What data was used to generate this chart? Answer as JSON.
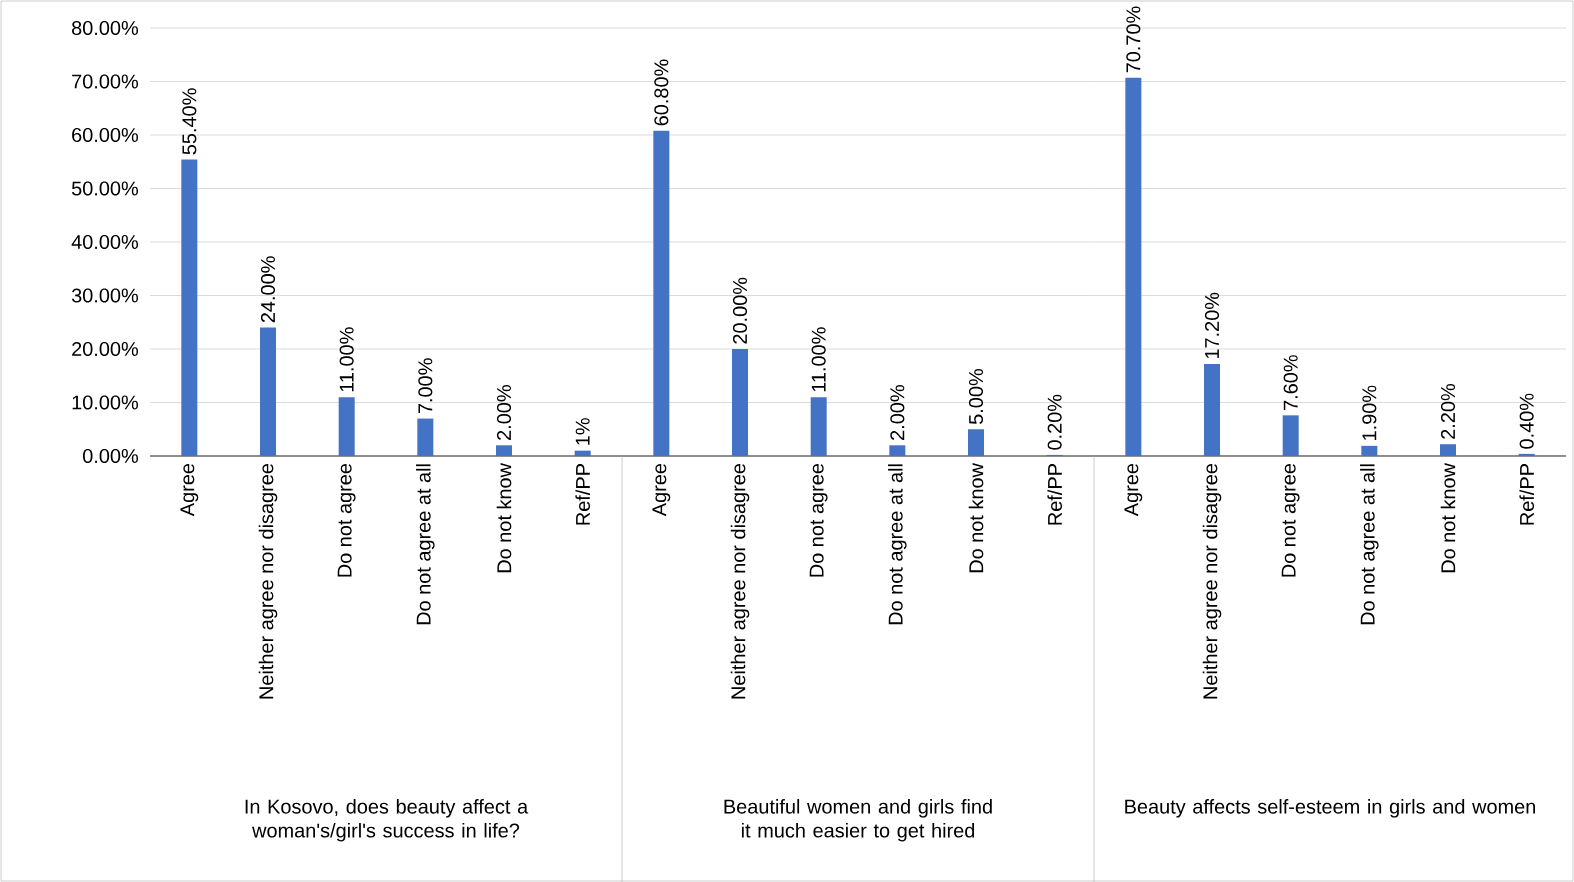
{
  "chart_data": [
    {
      "type": "bar",
      "xlabel": "In Kosovo, does beauty affect a woman's/girl's success in life?",
      "categories": [
        "Agree",
        "Neither agree nor disagree",
        "Do not agree",
        "Do not agree at all",
        "Do not know",
        "Ref/PP"
      ],
      "values": [
        55.4,
        24,
        11,
        7,
        2,
        1
      ],
      "value_labels": [
        "55.40%",
        "24.00%",
        "11.00%",
        "7.00%",
        "2.00%",
        "1%"
      ],
      "color": "#4472c4",
      "ylim": [
        0,
        80
      ],
      "yticks": [
        {
          "value": 0,
          "label": "0.00%"
        },
        {
          "value": 10,
          "label": "10.00%"
        },
        {
          "value": 20,
          "label": "20.00%"
        },
        {
          "value": 30,
          "label": "30.00%"
        },
        {
          "value": 40,
          "label": "40.00%"
        },
        {
          "value": 50,
          "label": "50.00%"
        },
        {
          "value": 60,
          "label": "60.00%"
        },
        {
          "value": 70,
          "label": "70.00%"
        },
        {
          "value": 80,
          "label": "80.00%"
        }
      ],
      "grid": "y"
    },
    {
      "type": "bar",
      "xlabel": "Beautiful women and girls find it much easier to get hired",
      "categories": [
        "Agree",
        "Neither agree nor disagree",
        "Do not agree",
        "Do not agree at all",
        "Do not know",
        "Ref/PP"
      ],
      "values": [
        60.8,
        20,
        11,
        2,
        5,
        0.2
      ],
      "value_labels": [
        "60.80%",
        "20.00%",
        "11.00%",
        "2.00%",
        "5.00%",
        "0.20%"
      ],
      "color": "#4472c4",
      "ylim": [
        0,
        80
      ],
      "yticks": [
        {
          "value": 0,
          "label": null
        },
        {
          "value": 10,
          "label": null
        },
        {
          "value": 20,
          "label": null
        },
        {
          "value": 30,
          "label": null
        },
        {
          "value": 40,
          "label": null
        },
        {
          "value": 50,
          "label": null
        },
        {
          "value": 60,
          "label": null
        },
        {
          "value": 70,
          "label": null
        },
        {
          "value": 80,
          "label": null
        }
      ],
      "grid": "y",
      "tick_labels": "x"
    },
    {
      "type": "bar",
      "xlabel": "Beauty affects self-esteem in girls and women",
      "categories": [
        "Agree",
        "Neither agree nor disagree",
        "Do not agree",
        "Do not agree at all",
        "Do not know",
        "Ref/PP"
      ],
      "values": [
        70.7,
        17.2,
        7.6,
        1.9,
        2.2,
        0.4
      ],
      "value_labels": [
        "70.70%",
        "17.20%",
        "7.60%",
        "1.90%",
        "2.20%",
        "0.40%"
      ],
      "color": "#4472c4",
      "ylim": [
        0,
        80
      ],
      "yticks": [
        {
          "value": 0,
          "label": null
        },
        {
          "value": 10,
          "label": null
        },
        {
          "value": 20,
          "label": null
        },
        {
          "value": 30,
          "label": null
        },
        {
          "value": 40,
          "label": null
        },
        {
          "value": 50,
          "label": null
        },
        {
          "value": 60,
          "label": null
        },
        {
          "value": 70,
          "label": null
        },
        {
          "value": 80,
          "label": null
        }
      ],
      "grid": "y",
      "tick_labels": "x"
    }
  ]
}
